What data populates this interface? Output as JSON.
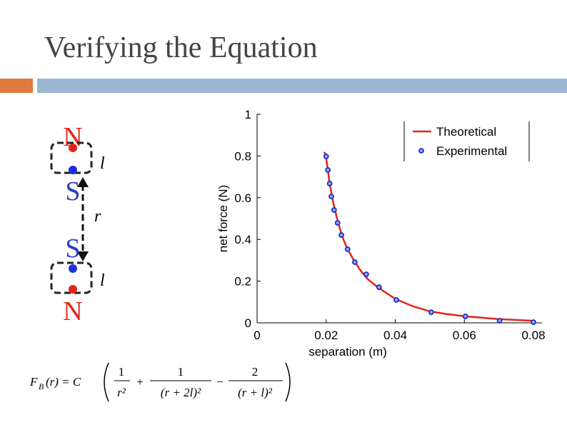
{
  "header": {
    "title": "Verifying the Equation"
  },
  "diagram": {
    "top_magnet": {
      "north": "N",
      "south": "S"
    },
    "bottom_magnet": {
      "south": "S",
      "north": "N"
    },
    "length_label_top": "l",
    "separation_label": "r",
    "length_label_bottom": "l"
  },
  "equation": {
    "function": "F",
    "subscript": "B",
    "lhs_rest": "(r) = C",
    "terms": [
      {
        "numerator": "1",
        "denominator": "r²"
      },
      {
        "operator": "+",
        "numerator": "1",
        "denominator": "(r + 2l)²"
      },
      {
        "operator": "−",
        "numerator": "2",
        "denominator": "(r + l)²"
      }
    ]
  },
  "chart_data": {
    "type": "line",
    "xlabel": "separation (m)",
    "ylabel": "net force (N)",
    "xlim": [
      0,
      0.08
    ],
    "xticks": [
      0,
      0.02,
      0.04,
      0.06,
      0.08
    ],
    "ylim": [
      0,
      1
    ],
    "yticks": [
      0,
      0.2,
      0.4,
      0.6,
      0.8,
      1
    ],
    "legend": "upper right",
    "series": [
      {
        "name": "Theoretical",
        "color": "#e3241b",
        "mode": "line",
        "x": [
          0.0195,
          0.02,
          0.021,
          0.022,
          0.023,
          0.024,
          0.025,
          0.026,
          0.028,
          0.03,
          0.032,
          0.035,
          0.04,
          0.045,
          0.05,
          0.055,
          0.06,
          0.07,
          0.08
        ],
        "values": [
          0.82,
          0.79,
          0.67,
          0.58,
          0.51,
          0.45,
          0.4,
          0.36,
          0.3,
          0.25,
          0.21,
          0.17,
          0.115,
          0.08,
          0.055,
          0.042,
          0.032,
          0.018,
          0.01
        ]
      },
      {
        "name": "Experimental",
        "color": "#1f2fbf",
        "mode": "markers",
        "x": [
          0.02,
          0.0205,
          0.021,
          0.0215,
          0.0223,
          0.0233,
          0.0244,
          0.0262,
          0.0283,
          0.0316,
          0.0353,
          0.0403,
          0.0504,
          0.0603,
          0.0702,
          0.08
        ],
        "values": [
          0.798,
          0.733,
          0.668,
          0.606,
          0.541,
          0.479,
          0.421,
          0.353,
          0.291,
          0.233,
          0.171,
          0.11,
          0.051,
          0.031,
          0.01,
          0.003
        ]
      }
    ]
  }
}
